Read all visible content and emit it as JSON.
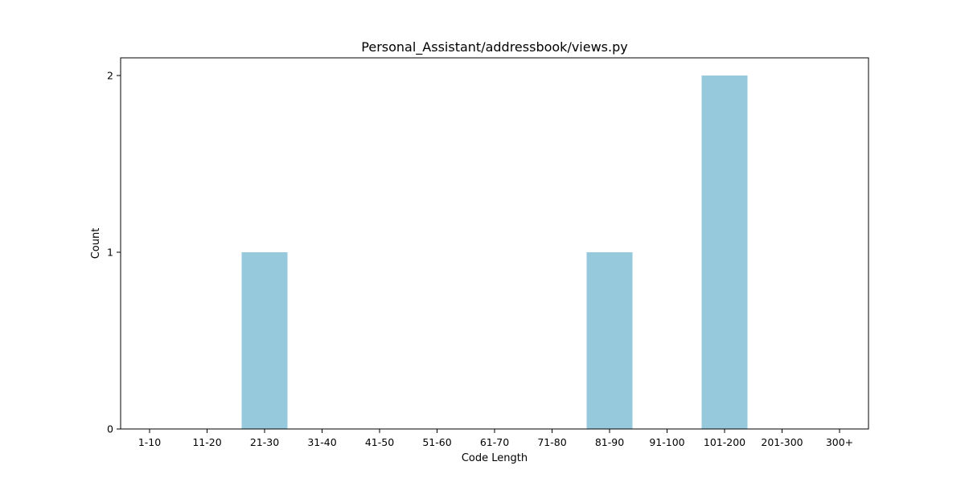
{
  "chart_data": {
    "type": "bar",
    "title": "Personal_Assistant/addressbook/views.py",
    "xlabel": "Code Length",
    "ylabel": "Count",
    "categories": [
      "1-10",
      "11-20",
      "21-30",
      "31-40",
      "41-50",
      "51-60",
      "61-70",
      "71-80",
      "81-90",
      "91-100",
      "101-200",
      "201-300",
      "300+"
    ],
    "values": [
      0,
      0,
      1,
      0,
      0,
      0,
      0,
      0,
      1,
      0,
      2,
      0,
      0
    ],
    "yticks": [
      "0",
      "1",
      "2"
    ],
    "ylim": [
      0,
      2.1
    ],
    "grid": false,
    "legend": "none",
    "bar_color": "#96c9dc"
  }
}
